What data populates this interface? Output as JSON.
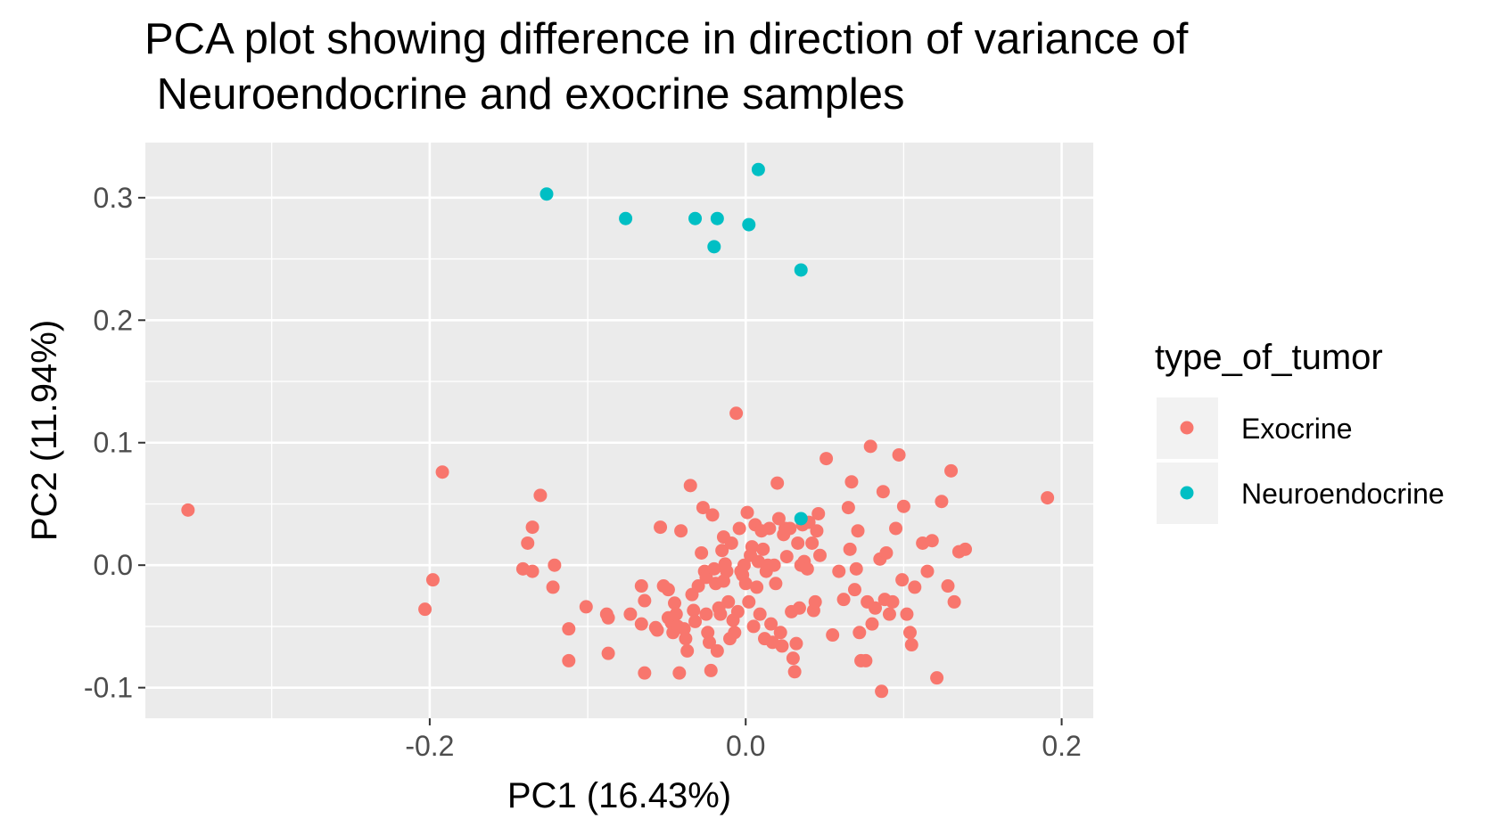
{
  "chart_data": {
    "type": "scatter",
    "title_lines": [
      "PCA plot showing difference in direction of variance of",
      " Neuroendocrine and exocrine samples"
    ],
    "xlabel": "PC1 (16.43%)",
    "ylabel": "PC2 (11.94%)",
    "xlim": [
      -0.38,
      0.22
    ],
    "ylim": [
      -0.125,
      0.345
    ],
    "xticks": [
      -0.2,
      0.0,
      0.2
    ],
    "xtick_labels": [
      "-0.2",
      "0.0",
      "0.2"
    ],
    "yticks": [
      -0.1,
      0.0,
      0.1,
      0.2,
      0.3
    ],
    "ytick_labels": [
      "-0.1",
      "0.0",
      "0.1",
      "0.2",
      "0.3"
    ],
    "grid": true,
    "background": "#ebebeb",
    "legend": {
      "title": "type_of_tumor",
      "placement": "right",
      "entries": [
        "Exocrine",
        "Neuroendocrine"
      ]
    },
    "series": [
      {
        "name": "Exocrine",
        "color": "#f8766d",
        "points": [
          [
            -0.353,
            0.045
          ],
          [
            -0.192,
            0.076
          ],
          [
            -0.203,
            -0.036
          ],
          [
            -0.198,
            -0.012
          ],
          [
            -0.13,
            0.057
          ],
          [
            -0.135,
            0.031
          ],
          [
            -0.138,
            0.018
          ],
          [
            -0.141,
            -0.003
          ],
          [
            -0.135,
            -0.005
          ],
          [
            -0.121,
            0.0
          ],
          [
            -0.122,
            -0.018
          ],
          [
            -0.112,
            -0.052
          ],
          [
            -0.112,
            -0.078
          ],
          [
            -0.101,
            -0.034
          ],
          [
            -0.088,
            -0.04
          ],
          [
            -0.087,
            -0.043
          ],
          [
            -0.087,
            -0.072
          ],
          [
            -0.073,
            -0.04
          ],
          [
            -0.066,
            -0.017
          ],
          [
            -0.066,
            -0.048
          ],
          [
            -0.064,
            -0.029
          ],
          [
            -0.064,
            -0.088
          ],
          [
            -0.057,
            -0.051
          ],
          [
            -0.056,
            -0.053
          ],
          [
            -0.054,
            0.031
          ],
          [
            -0.052,
            -0.017
          ],
          [
            -0.049,
            -0.02
          ],
          [
            -0.049,
            -0.043
          ],
          [
            -0.047,
            -0.047
          ],
          [
            -0.046,
            -0.055
          ],
          [
            -0.045,
            -0.031
          ],
          [
            -0.044,
            -0.04
          ],
          [
            -0.043,
            -0.05
          ],
          [
            -0.042,
            -0.088
          ],
          [
            -0.041,
            0.028
          ],
          [
            -0.039,
            -0.052
          ],
          [
            -0.038,
            -0.06
          ],
          [
            -0.037,
            -0.07
          ],
          [
            -0.035,
            0.065
          ],
          [
            -0.034,
            -0.024
          ],
          [
            -0.033,
            -0.037
          ],
          [
            -0.032,
            -0.046
          ],
          [
            -0.03,
            -0.017
          ],
          [
            -0.028,
            0.01
          ],
          [
            -0.027,
            0.047
          ],
          [
            -0.026,
            -0.005
          ],
          [
            -0.025,
            -0.01
          ],
          [
            -0.025,
            -0.04
          ],
          [
            -0.024,
            -0.055
          ],
          [
            -0.023,
            -0.063
          ],
          [
            -0.022,
            -0.086
          ],
          [
            -0.021,
            0.041
          ],
          [
            -0.02,
            -0.003
          ],
          [
            -0.019,
            -0.015
          ],
          [
            -0.018,
            -0.07
          ],
          [
            -0.017,
            -0.035
          ],
          [
            -0.016,
            -0.04
          ],
          [
            -0.015,
            0.012
          ],
          [
            -0.014,
            0.023
          ],
          [
            -0.014,
            -0.013
          ],
          [
            -0.013,
            0.001
          ],
          [
            -0.012,
            -0.005
          ],
          [
            -0.011,
            -0.03
          ],
          [
            -0.01,
            -0.06
          ],
          [
            -0.009,
            0.018
          ],
          [
            -0.008,
            -0.045
          ],
          [
            -0.007,
            -0.055
          ],
          [
            -0.006,
            0.124
          ],
          [
            -0.005,
            -0.038
          ],
          [
            -0.004,
            0.03
          ],
          [
            -0.003,
            -0.005
          ],
          [
            -0.002,
            -0.008
          ],
          [
            -0.001,
            0.0
          ],
          [
            0.0,
            -0.015
          ],
          [
            0.001,
            0.043
          ],
          [
            0.002,
            -0.03
          ],
          [
            0.003,
            0.008
          ],
          [
            0.004,
            0.015
          ],
          [
            0.005,
            -0.05
          ],
          [
            0.006,
            0.033
          ],
          [
            0.007,
            -0.018
          ],
          [
            0.008,
            0.003
          ],
          [
            0.009,
            -0.04
          ],
          [
            0.01,
            0.028
          ],
          [
            0.011,
            0.013
          ],
          [
            0.012,
            -0.06
          ],
          [
            0.013,
            -0.005
          ],
          [
            0.014,
            0.0
          ],
          [
            0.015,
            0.03
          ],
          [
            0.016,
            -0.048
          ],
          [
            0.017,
            -0.063
          ],
          [
            0.018,
            0.0
          ],
          [
            0.019,
            -0.015
          ],
          [
            0.02,
            0.067
          ],
          [
            0.021,
            0.038
          ],
          [
            0.022,
            -0.055
          ],
          [
            0.023,
            -0.066
          ],
          [
            0.024,
            0.025
          ],
          [
            0.025,
            0.03
          ],
          [
            0.026,
            0.007
          ],
          [
            0.028,
            0.03
          ],
          [
            0.029,
            -0.038
          ],
          [
            0.03,
            -0.076
          ],
          [
            0.031,
            -0.087
          ],
          [
            0.032,
            -0.064
          ],
          [
            0.033,
            0.018
          ],
          [
            0.034,
            -0.035
          ],
          [
            0.035,
            0.0
          ],
          [
            0.036,
            0.033
          ],
          [
            0.037,
            0.003
          ],
          [
            0.039,
            -0.003
          ],
          [
            0.04,
            0.035
          ],
          [
            0.042,
            0.018
          ],
          [
            0.043,
            -0.037
          ],
          [
            0.044,
            -0.03
          ],
          [
            0.045,
            0.028
          ],
          [
            0.046,
            0.042
          ],
          [
            0.047,
            0.008
          ],
          [
            0.051,
            0.087
          ],
          [
            0.055,
            -0.057
          ],
          [
            0.059,
            -0.005
          ],
          [
            0.062,
            -0.028
          ],
          [
            0.065,
            0.047
          ],
          [
            0.066,
            0.013
          ],
          [
            0.067,
            0.068
          ],
          [
            0.069,
            -0.02
          ],
          [
            0.07,
            -0.003
          ],
          [
            0.071,
            0.028
          ],
          [
            0.072,
            -0.055
          ],
          [
            0.073,
            -0.078
          ],
          [
            0.076,
            -0.078
          ],
          [
            0.077,
            -0.03
          ],
          [
            0.079,
            0.097
          ],
          [
            0.08,
            -0.048
          ],
          [
            0.082,
            -0.035
          ],
          [
            0.085,
            0.005
          ],
          [
            0.086,
            -0.103
          ],
          [
            0.087,
            0.06
          ],
          [
            0.088,
            -0.028
          ],
          [
            0.089,
            0.01
          ],
          [
            0.091,
            -0.04
          ],
          [
            0.093,
            -0.03
          ],
          [
            0.095,
            0.03
          ],
          [
            0.097,
            0.09
          ],
          [
            0.099,
            -0.012
          ],
          [
            0.1,
            0.048
          ],
          [
            0.102,
            -0.04
          ],
          [
            0.104,
            -0.055
          ],
          [
            0.105,
            -0.065
          ],
          [
            0.107,
            -0.018
          ],
          [
            0.112,
            0.018
          ],
          [
            0.115,
            -0.005
          ],
          [
            0.118,
            0.02
          ],
          [
            0.121,
            -0.092
          ],
          [
            0.124,
            0.052
          ],
          [
            0.128,
            -0.017
          ],
          [
            0.13,
            0.077
          ],
          [
            0.132,
            -0.03
          ],
          [
            0.135,
            0.011
          ],
          [
            0.139,
            0.013
          ],
          [
            0.191,
            0.055
          ]
        ]
      },
      {
        "name": "Neuroendocrine",
        "color": "#00bfc4",
        "points": [
          [
            -0.126,
            0.303
          ],
          [
            -0.076,
            0.283
          ],
          [
            -0.032,
            0.283
          ],
          [
            -0.018,
            0.283
          ],
          [
            -0.02,
            0.26
          ],
          [
            0.002,
            0.278
          ],
          [
            0.008,
            0.323
          ],
          [
            0.035,
            0.241
          ],
          [
            0.035,
            0.038
          ]
        ]
      }
    ]
  }
}
